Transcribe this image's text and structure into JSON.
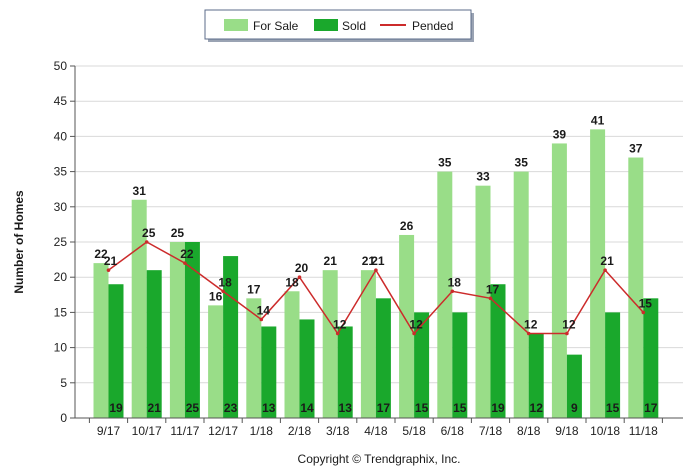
{
  "chart_data": {
    "type": "bar",
    "title": "",
    "xlabel": "",
    "ylabel": "Number of Homes",
    "ylim": [
      0,
      50
    ],
    "yticks": [
      0,
      5,
      10,
      15,
      20,
      25,
      30,
      35,
      40,
      45,
      50
    ],
    "grid": true,
    "legend_position": "top-center",
    "categories": [
      "9/17",
      "10/17",
      "11/17",
      "12/17",
      "1/18",
      "2/18",
      "3/18",
      "4/18",
      "5/18",
      "6/18",
      "7/18",
      "8/18",
      "9/18",
      "10/18",
      "11/18"
    ],
    "series": [
      {
        "name": "For Sale",
        "type": "bar",
        "color": "#99dd88",
        "values": [
          22,
          31,
          25,
          16,
          17,
          18,
          21,
          21,
          26,
          35,
          33,
          35,
          39,
          41,
          37
        ]
      },
      {
        "name": "Sold",
        "type": "bar",
        "color": "#1aa82c",
        "values": [
          19,
          21,
          25,
          23,
          13,
          14,
          13,
          17,
          15,
          15,
          19,
          12,
          9,
          15,
          17
        ]
      },
      {
        "name": "Pended",
        "type": "line",
        "color": "#cc2b2b",
        "values": [
          21,
          25,
          22,
          18,
          14,
          20,
          12,
          21,
          12,
          18,
          17,
          12,
          12,
          21,
          15
        ]
      }
    ]
  },
  "copyright": "Copyright © Trendgraphix, Inc."
}
